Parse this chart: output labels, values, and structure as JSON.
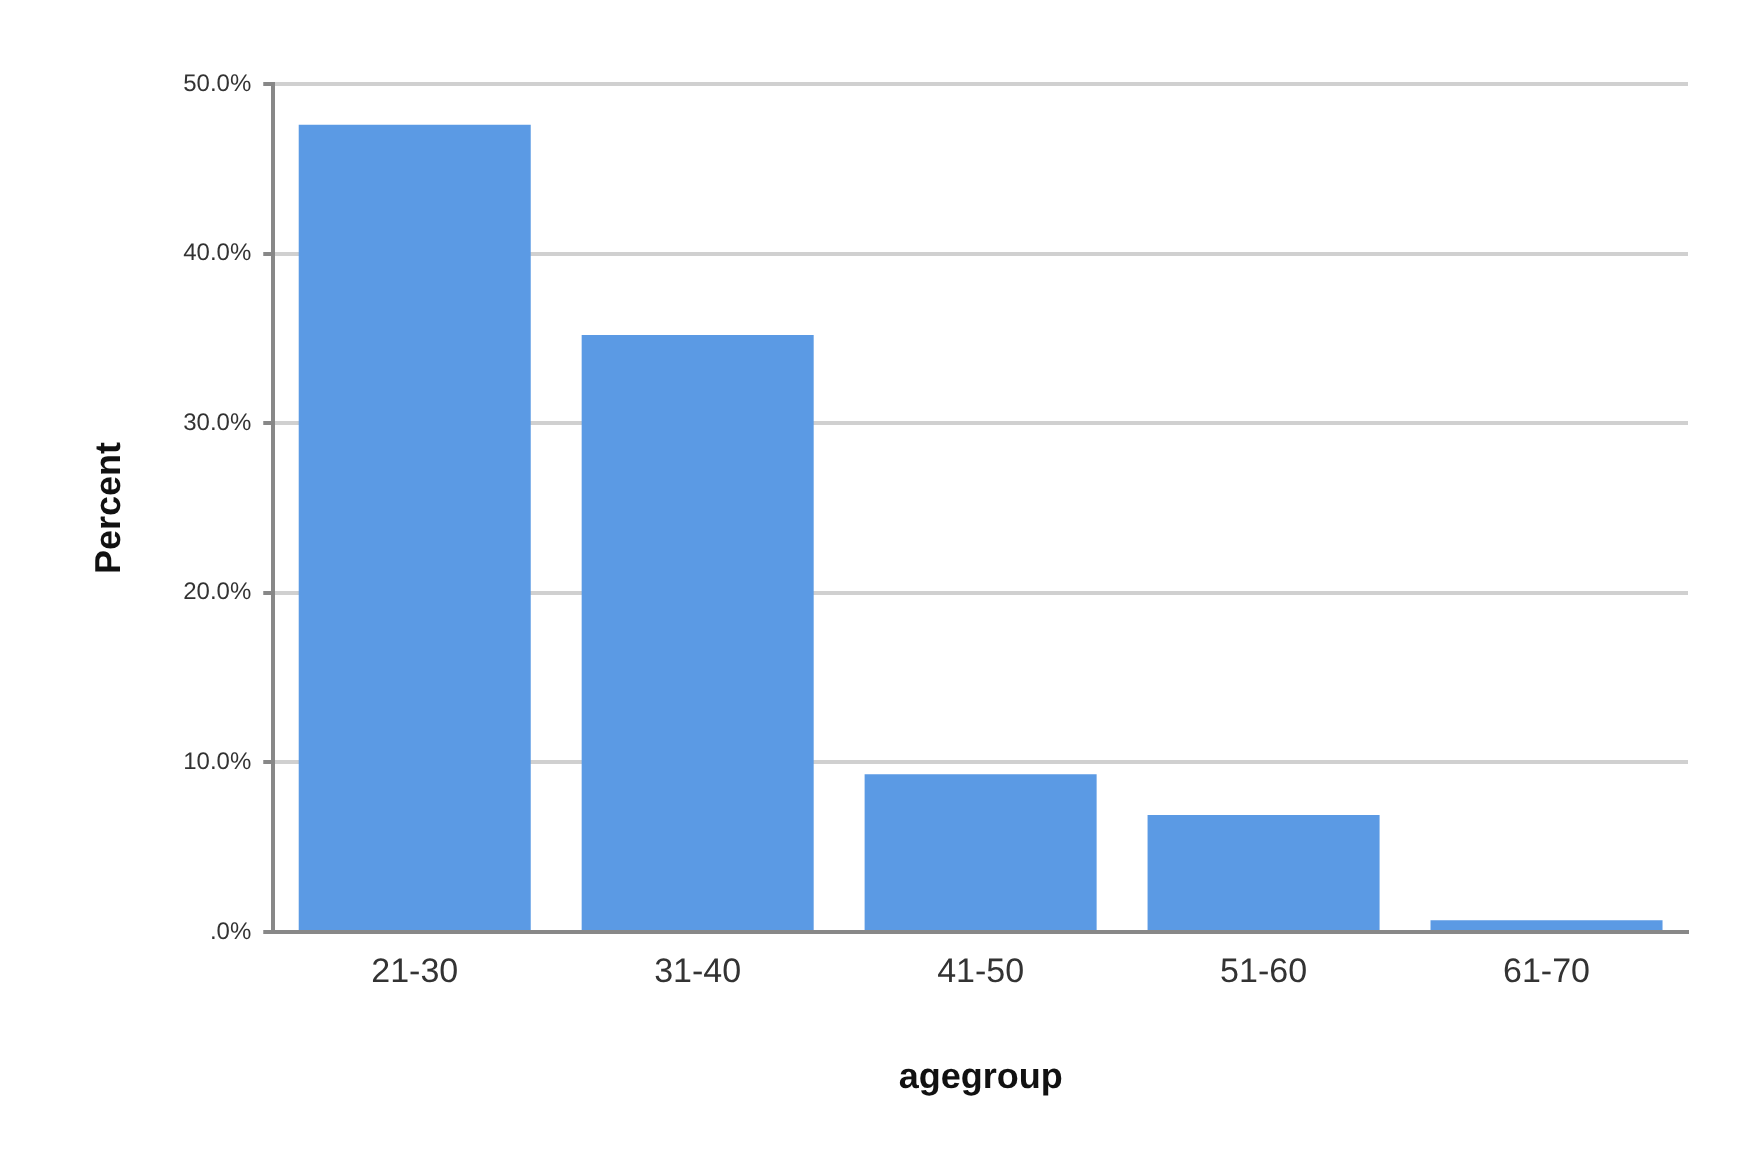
{
  "chart_data": {
    "type": "bar",
    "xlabel": "agegroup",
    "ylabel": "Percent",
    "categories": [
      "21-30",
      "31-40",
      "41-50",
      "51-60",
      "61-70"
    ],
    "values": [
      47.6,
      35.2,
      9.3,
      6.9,
      0.7
    ],
    "color": "#5b9ae4",
    "ylim": [
      0,
      50
    ],
    "yticks": [
      {
        "value": 0,
        "label": ".0%"
      },
      {
        "value": 10,
        "label": "10.0%"
      },
      {
        "value": 20,
        "label": "20.0%"
      },
      {
        "value": 30,
        "label": "30.0%"
      },
      {
        "value": 40,
        "label": "40.0%"
      },
      {
        "value": 50,
        "label": "50.0%"
      }
    ],
    "grid": "y",
    "legend": false
  }
}
